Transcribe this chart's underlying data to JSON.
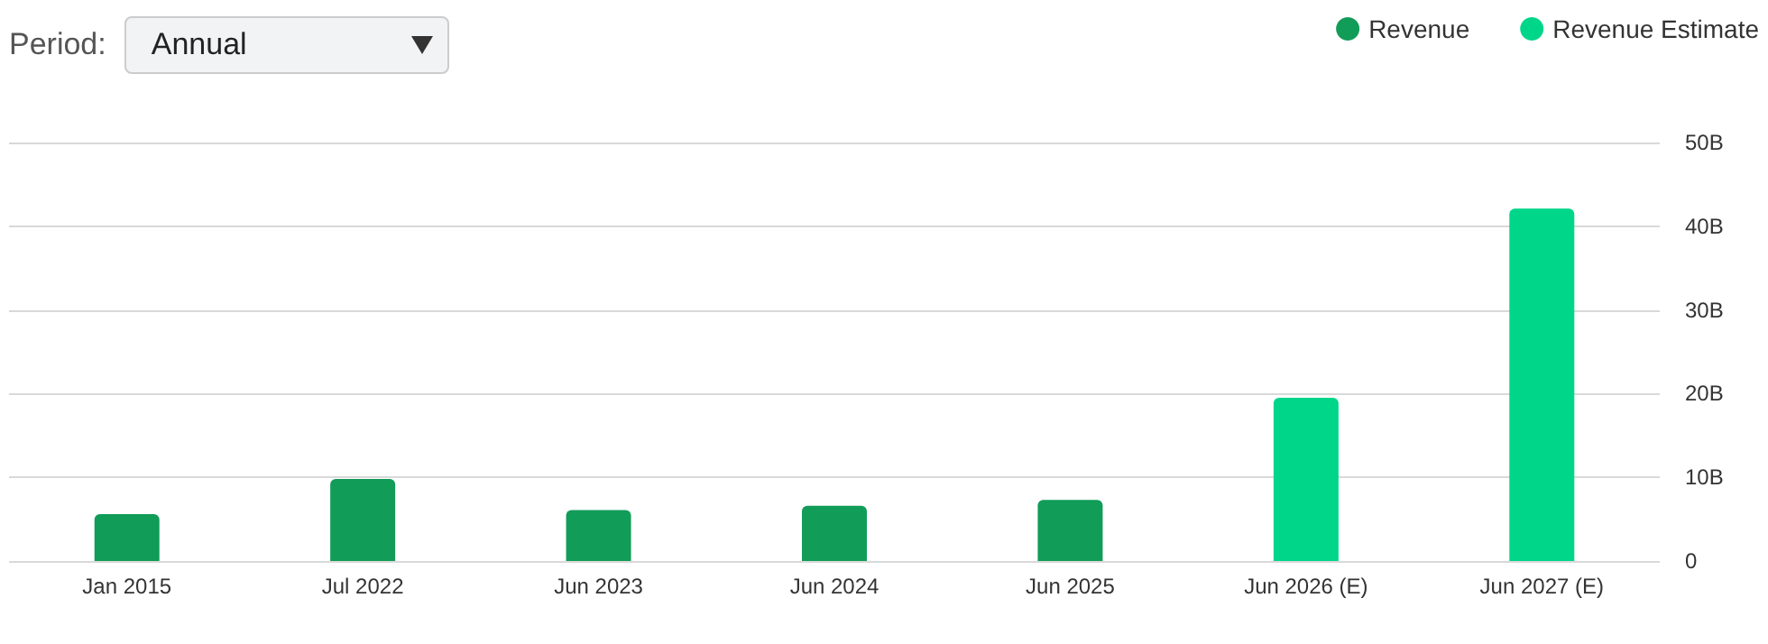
{
  "chart_data": {
    "type": "bar",
    "categories": [
      "Jan 2015",
      "Jul 2022",
      "Jun 2023",
      "Jun 2024",
      "Jun 2025",
      "Jun 2026 (E)",
      "Jun 2027 (E)"
    ],
    "series": [
      {
        "name": "Revenue",
        "color": "#119c58",
        "values": [
          5.6,
          9.8,
          6.1,
          6.6,
          7.3,
          null,
          null
        ]
      },
      {
        "name": "Revenue Estimate",
        "color": "#00d68a",
        "values": [
          null,
          null,
          null,
          null,
          null,
          19.5,
          42.1
        ]
      }
    ],
    "ylim": [
      0,
      50
    ],
    "yticks": [
      {
        "value": 0,
        "label": "0"
      },
      {
        "value": 10,
        "label": "10B"
      },
      {
        "value": 20,
        "label": "20B"
      },
      {
        "value": 30,
        "label": "30B"
      },
      {
        "value": 40,
        "label": "40B"
      },
      {
        "value": 50,
        "label": "50B"
      }
    ],
    "grid": "y",
    "legend": "top right",
    "annotations": [
      "Period:",
      "Annual"
    ]
  }
}
